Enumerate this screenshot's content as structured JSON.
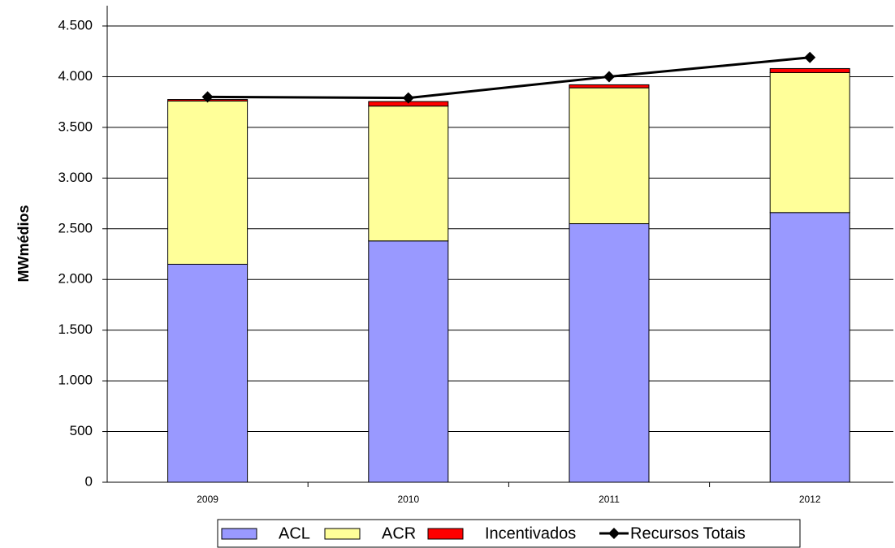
{
  "chart_data": {
    "type": "bar",
    "stacked": true,
    "ylabel": "MWmédios",
    "categories": [
      "2009",
      "2010",
      "2011",
      "2012"
    ],
    "series": [
      {
        "name": "ACL",
        "color": "#9999ff",
        "values": [
          2150,
          2380,
          2550,
          2660
        ]
      },
      {
        "name": "ACR",
        "color": "#ffff99",
        "values": [
          1610,
          1330,
          1340,
          1380
        ]
      },
      {
        "name": "Incentivados",
        "color": "#ff0000",
        "values": [
          15,
          45,
          30,
          40
        ]
      },
      {
        "name": "Recursos Totais",
        "color": "#000000",
        "type": "line",
        "values": [
          3800,
          3790,
          4000,
          4190
        ]
      }
    ],
    "ylim": [
      0,
      4500
    ],
    "yticks": [
      0,
      500,
      {
        "value": 1000,
        "label": "1.000"
      },
      {
        "value": 1500,
        "label": "1.500"
      },
      {
        "value": 2000,
        "label": "2.000"
      },
      {
        "value": 2500,
        "label": "2.500"
      },
      {
        "value": 3000,
        "label": "3.000"
      },
      {
        "value": 3500,
        "label": "3.500"
      },
      {
        "value": 4000,
        "label": "4.000"
      },
      {
        "value": 4500,
        "label": "4.500"
      }
    ],
    "grid": true,
    "legend": "bottom"
  }
}
